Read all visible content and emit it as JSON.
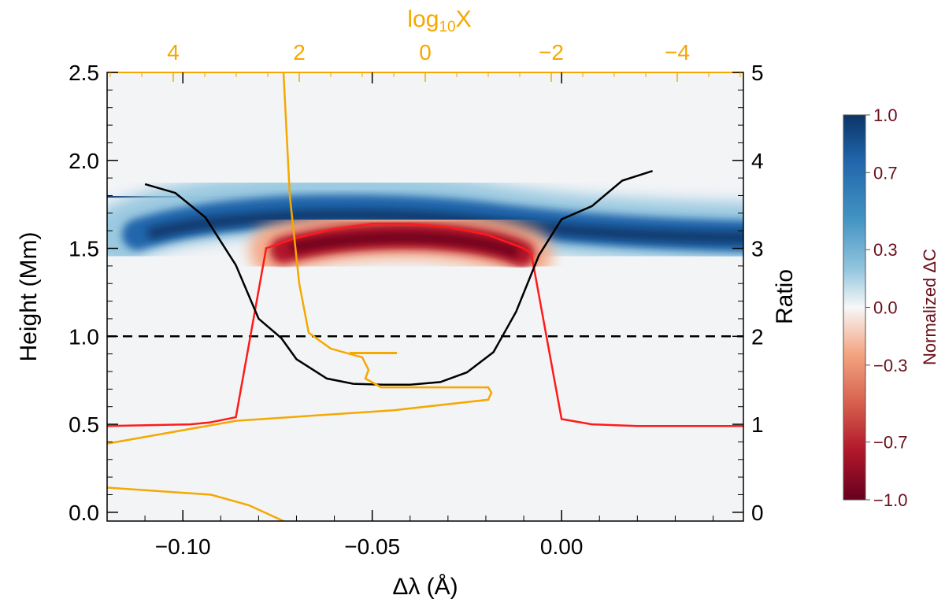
{
  "chart_data": {
    "type": "heatmap",
    "bottom_axis": {
      "label": "Δλ (Å)",
      "range": [
        -0.12,
        0.048
      ],
      "ticks": [
        -0.1,
        -0.05,
        0.0
      ],
      "tick_labels": [
        "−0.10",
        "−0.05",
        "0.00"
      ]
    },
    "left_axis": {
      "label": "Height (Mm)",
      "range": [
        -0.05,
        2.5
      ],
      "ticks": [
        0.0,
        0.5,
        1.0,
        1.5,
        2.0,
        2.5
      ],
      "tick_labels": [
        "0.0",
        "0.5",
        "1.0",
        "1.5",
        "2.0",
        "2.5"
      ]
    },
    "right_axis": {
      "label": "Ratio",
      "range": [
        -0.1,
        5
      ],
      "ticks": [
        0,
        1,
        2,
        3,
        4,
        5
      ],
      "tick_labels": [
        "0",
        "1",
        "2",
        "3",
        "4",
        "5"
      ]
    },
    "top_axis": {
      "label_base": "log",
      "label_sub": "10",
      "label_var": "X",
      "color": "#f5a800",
      "range": [
        5.05,
        -5.05
      ],
      "ticks": [
        4,
        2,
        0,
        -2,
        -4
      ],
      "tick_labels": [
        "4",
        "2",
        "0",
        "−2",
        "−4"
      ]
    },
    "colorbar": {
      "label": "Normalized ΔC",
      "label_color": "#6b0f1a",
      "range": [
        -1.0,
        1.0
      ],
      "ticks": [
        1.0,
        0.7,
        0.3,
        0.0,
        -0.3,
        -0.7,
        -1.0
      ],
      "tick_labels": [
        "1.0",
        "0.7",
        "0.3",
        "0.0",
        "−0.3",
        "−0.7",
        "−1.0"
      ],
      "colors_high_to_low": [
        "#0b3466",
        "#2166ac",
        "#4393c3",
        "#92c5de",
        "#f7f7f7",
        "#f4a582",
        "#d6604d",
        "#b2182b",
        "#67001f"
      ]
    },
    "reference_line": {
      "axis": "left",
      "height": 1.0,
      "style": "dashed",
      "color": "#000000"
    },
    "series": [
      {
        "axes": "bottom-left",
        "color": "#ff1a1a",
        "points": [
          [
            -0.12,
            0.49
          ],
          [
            -0.098,
            0.5
          ],
          [
            -0.093,
            0.51
          ],
          [
            -0.086,
            0.54
          ],
          [
            -0.078,
            1.5
          ],
          [
            -0.07,
            1.56
          ],
          [
            -0.06,
            1.61
          ],
          [
            -0.05,
            1.64
          ],
          [
            -0.04,
            1.64
          ],
          [
            -0.03,
            1.62
          ],
          [
            -0.02,
            1.58
          ],
          [
            -0.01,
            1.5
          ],
          [
            -0.008,
            1.47
          ],
          [
            0.0,
            0.53
          ],
          [
            0.008,
            0.5
          ],
          [
            0.02,
            0.49
          ],
          [
            0.048,
            0.49
          ]
        ]
      },
      {
        "axes": "bottom-right",
        "color": "#000000",
        "points": [
          [
            -0.11,
            3.73
          ],
          [
            -0.102,
            3.63
          ],
          [
            -0.094,
            3.35
          ],
          [
            -0.086,
            2.81
          ],
          [
            -0.08,
            2.2
          ],
          [
            -0.074,
            1.98
          ],
          [
            -0.07,
            1.74
          ],
          [
            -0.062,
            1.52
          ],
          [
            -0.055,
            1.46
          ],
          [
            -0.047,
            1.45
          ],
          [
            -0.04,
            1.45
          ],
          [
            -0.032,
            1.48
          ],
          [
            -0.025,
            1.59
          ],
          [
            -0.018,
            1.82
          ],
          [
            -0.012,
            2.28
          ],
          [
            -0.006,
            2.92
          ],
          [
            0.0,
            3.33
          ],
          [
            0.008,
            3.48
          ],
          [
            0.016,
            3.77
          ],
          [
            0.024,
            3.88
          ]
        ]
      },
      {
        "axes": "top-left",
        "color": "#f5a800",
        "points": [
          [
            2.25,
            2.5
          ],
          [
            2.15,
            1.8
          ],
          [
            2.0,
            1.3
          ],
          [
            1.85,
            1.02
          ],
          [
            1.5,
            0.93
          ],
          [
            1.0,
            0.88
          ],
          [
            0.9,
            0.81
          ],
          [
            0.95,
            0.76
          ],
          [
            0.7,
            0.71
          ],
          [
            -1.0,
            0.71
          ],
          [
            -1.05,
            0.68
          ],
          [
            -1.0,
            0.64
          ],
          [
            0.5,
            0.58
          ],
          [
            3.0,
            0.52
          ],
          [
            5.05,
            0.39
          ]
        ]
      },
      {
        "axes": "top-left",
        "color": "#f5a800",
        "points": [
          [
            5.05,
            0.14
          ],
          [
            3.4,
            0.1
          ],
          [
            2.8,
            0.04
          ],
          [
            2.25,
            -0.05
          ]
        ]
      },
      {
        "axes": "top-left",
        "color": "#f5a800",
        "points": [
          [
            1.2,
            0.905
          ],
          [
            0.45,
            0.905
          ]
        ]
      }
    ]
  }
}
